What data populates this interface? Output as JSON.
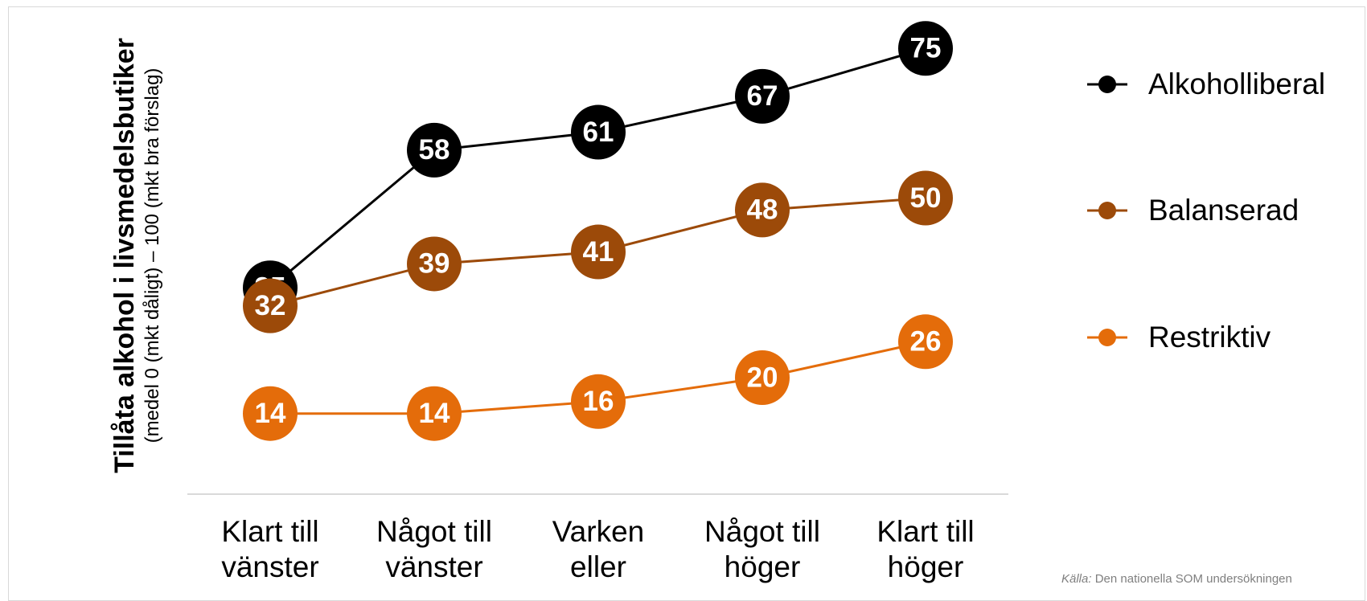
{
  "chart_data": {
    "type": "line",
    "y_label": "Tillåta alkohol i livsmedelsbutiker",
    "y_sublabel": "(medel 0 (mkt dåligt) – 100 (mkt bra förslag)",
    "categories": [
      "Klart till vänster",
      "Något till vänster",
      "Varken eller",
      "Något till höger",
      "Klart till höger"
    ],
    "series": [
      {
        "name": "Alkoholliberal",
        "color": "#000000",
        "values": [
          35,
          58,
          61,
          67,
          75
        ]
      },
      {
        "name": "Balanserad",
        "color": "#9c4a09",
        "values": [
          32,
          39,
          41,
          48,
          50
        ]
      },
      {
        "name": "Restriktiv",
        "color": "#e46c0a",
        "values": [
          14,
          14,
          16,
          20,
          26
        ]
      }
    ],
    "ylim": [
      0,
      80
    ],
    "legend": "right",
    "source_label": "Källa:",
    "source": "Den nationella SOM undersökningen"
  }
}
